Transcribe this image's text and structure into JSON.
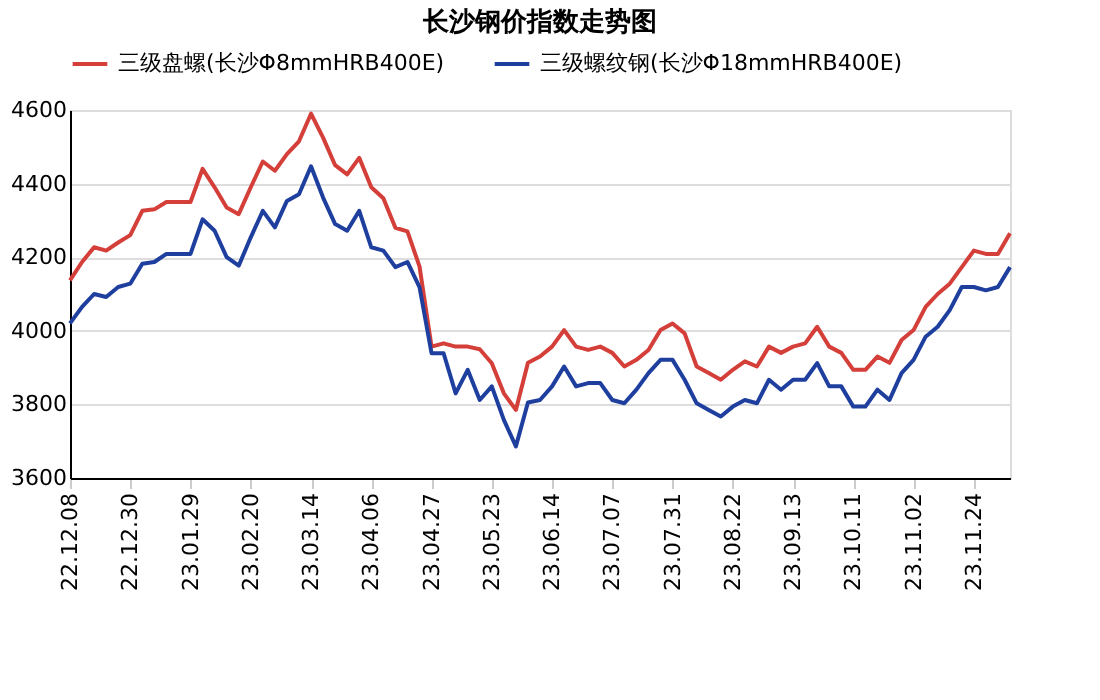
{
  "chart_data": {
    "type": "line",
    "title": "长沙钢价指数走势图",
    "categories": [
      "22.12.08",
      null,
      null,
      null,
      null,
      "22.12.30",
      null,
      null,
      null,
      null,
      "23.01.29",
      null,
      null,
      null,
      null,
      "23.02.20",
      null,
      null,
      null,
      null,
      "23.03.14",
      null,
      null,
      null,
      null,
      "23.04.06",
      null,
      null,
      null,
      null,
      "23.04.27",
      null,
      null,
      null,
      null,
      "23.05.23",
      null,
      null,
      null,
      null,
      "23.06.14",
      null,
      null,
      null,
      null,
      "23.07.07",
      null,
      null,
      null,
      null,
      "23.07.31",
      null,
      null,
      null,
      null,
      "23.08.22",
      null,
      null,
      null,
      null,
      "23.09.13",
      null,
      null,
      null,
      null,
      "23.10.11",
      null,
      null,
      null,
      null,
      "23.11.02",
      null,
      null,
      null,
      null,
      "23.11.24",
      null,
      null,
      null
    ],
    "series": [
      {
        "name": "三级盘螺(长沙Φ8mmHRB400E)",
        "color": "#d43f3a",
        "values": [
          4137,
          4187,
          4227,
          4218,
          4240,
          4260,
          4326,
          4330,
          4350,
          4350,
          4350,
          4440,
          4390,
          4335,
          4317,
          4390,
          4460,
          4435,
          4480,
          4515,
          4590,
          4525,
          4450,
          4425,
          4470,
          4390,
          4360,
          4280,
          4270,
          4175,
          3957,
          3966,
          3957,
          3957,
          3950,
          3912,
          3830,
          3785,
          3913,
          3930,
          3957,
          4002,
          3957,
          3948,
          3957,
          3940,
          3903,
          3921,
          3948,
          4002,
          4020,
          3993,
          3903,
          3885,
          3867,
          3894,
          3917,
          3903,
          3957,
          3940,
          3957,
          3966,
          4011,
          3957,
          3940,
          3894,
          3894,
          3930,
          3913,
          3975,
          4002,
          4065,
          4100,
          4128,
          4173,
          4218,
          4209,
          4209,
          4265
        ]
      },
      {
        "name": "三级螺纹钢(长沙Φ18mmHRB400E)",
        "color": "#1f3f9f",
        "values": [
          4020,
          4065,
          4100,
          4092,
          4119,
          4128,
          4182,
          4187,
          4209,
          4209,
          4209,
          4303,
          4272,
          4200,
          4177,
          4254,
          4326,
          4281,
          4353,
          4371,
          4447,
          4362,
          4290,
          4272,
          4326,
          4227,
          4218,
          4173,
          4187,
          4119,
          3939,
          3939,
          3830,
          3894,
          3812,
          3849,
          3758,
          3686,
          3805,
          3812,
          3849,
          3903,
          3849,
          3858,
          3858,
          3812,
          3803,
          3840,
          3885,
          3921,
          3921,
          3867,
          3803,
          3785,
          3767,
          3794,
          3812,
          3803,
          3867,
          3840,
          3867,
          3867,
          3912,
          3849,
          3849,
          3794,
          3794,
          3840,
          3812,
          3885,
          3921,
          3984,
          4011,
          4056,
          4119,
          4119,
          4110,
          4119,
          4173
        ]
      }
    ],
    "ylim": [
      3600,
      4600
    ],
    "yticks": [
      3600,
      3800,
      4000,
      4200,
      4400,
      4600
    ],
    "grid": "y",
    "legend": "top",
    "line_style": "solid",
    "marker": "none"
  }
}
